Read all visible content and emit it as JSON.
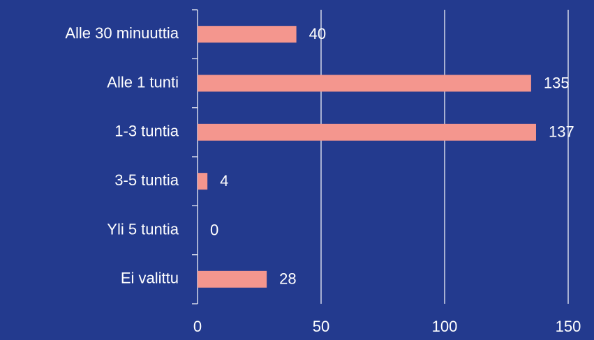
{
  "chart_data": {
    "type": "hbar",
    "categories": [
      "Alle 30 minuuttia",
      "Alle 1 tunti",
      "1-3 tuntia",
      "3-5 tuntia",
      "Yli 5 tuntia",
      "Ei valittu"
    ],
    "values": [
      40,
      135,
      137,
      4,
      0,
      28
    ],
    "color": "#f4968e",
    "xlim": [
      0,
      150
    ],
    "xticks": [
      0,
      50,
      100,
      150
    ],
    "grid": true
  }
}
